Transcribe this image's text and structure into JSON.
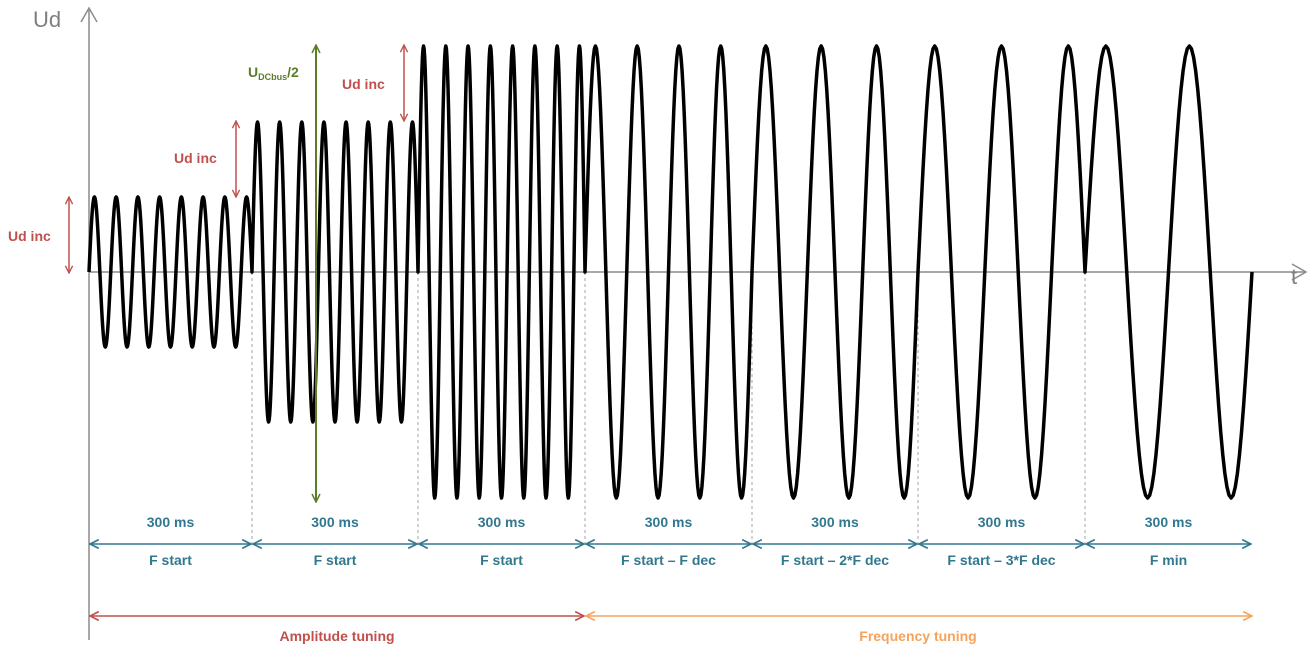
{
  "axes": {
    "y_label": "Ud",
    "x_label": "t"
  },
  "colors": {
    "axis": "#8c8c8c",
    "wave": "#000000",
    "ud_inc": "#c0504d",
    "dcbus": "#5a7d2a",
    "interval": "#31788f",
    "amplitude": "#c0504d",
    "frequency": "#f5a35c"
  },
  "ud_inc_label": "Ud inc",
  "dcbus_label": {
    "main": "U",
    "sub": "DCbus",
    "suffix": "/2"
  },
  "intervals": [
    {
      "duration": "300 ms",
      "frequency": "F start"
    },
    {
      "duration": "300 ms",
      "frequency": "F start"
    },
    {
      "duration": "300 ms",
      "frequency": "F start"
    },
    {
      "duration": "300 ms",
      "frequency": "F start – F dec"
    },
    {
      "duration": "300 ms",
      "frequency": "F start – 2*F dec"
    },
    {
      "duration": "300 ms",
      "frequency": "F start – 3*F dec"
    },
    {
      "duration": "300 ms",
      "frequency": "F min"
    }
  ],
  "phases": [
    {
      "label": "Amplitude tuning"
    },
    {
      "label": "Frequency tuning"
    }
  ],
  "wave_segments": [
    {
      "amplitude_level": 1,
      "cycles": 7.5
    },
    {
      "amplitude_level": 2,
      "cycles": 7.5
    },
    {
      "amplitude_level": 3,
      "cycles": 7.5
    },
    {
      "amplitude_level": 3,
      "cycles": 4
    },
    {
      "amplitude_level": 3,
      "cycles": 3
    },
    {
      "amplitude_level": 3,
      "cycles": 2.5
    },
    {
      "amplitude_level": 3,
      "cycles": 2
    }
  ]
}
